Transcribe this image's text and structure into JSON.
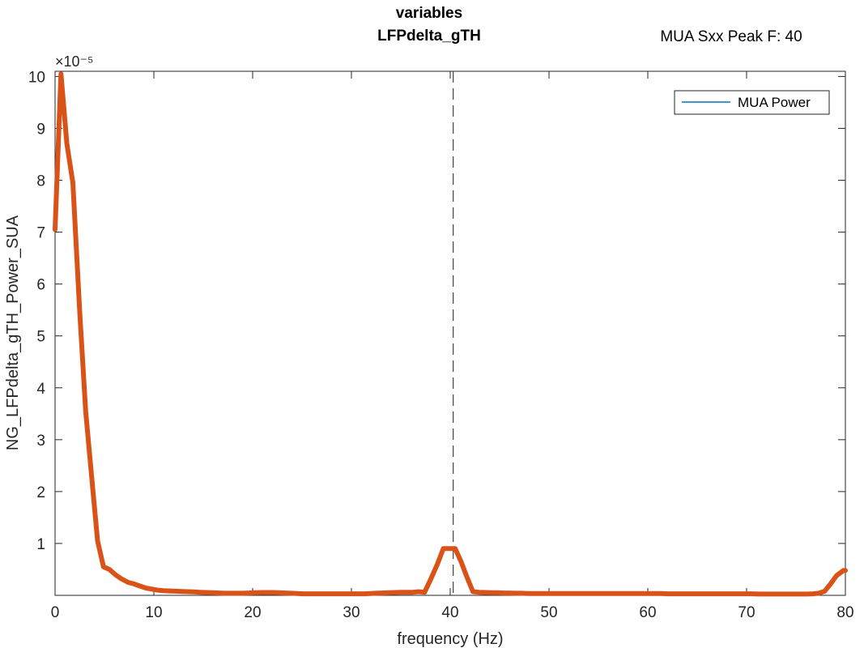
{
  "title_line1": "variables",
  "title_line2": "LFPdelta_gTH",
  "annotation": "MUA Sxx Peak F: 40",
  "exponent_label": "×10⁻⁵",
  "colors": {
    "line": "#D95319",
    "legend_line": "#0072BD",
    "axes": "#262626",
    "dashed": "#4d4d4d"
  },
  "chart_data": {
    "type": "line",
    "xlabel": "frequency (Hz)",
    "ylabel": "NG_LFPdelta_gTH_Power_SUA",
    "xlim": [
      0,
      80
    ],
    "ylim": [
      0.0,
      10.1
    ],
    "y_scale_exponent": -5,
    "xticks": [
      0,
      10,
      20,
      30,
      40,
      50,
      60,
      70,
      80
    ],
    "yticks": [
      1,
      2,
      3,
      4,
      5,
      6,
      7,
      8,
      9,
      10
    ],
    "grid": false,
    "legend": {
      "position": "top-right",
      "entries": [
        "MUA Power"
      ]
    },
    "vline_x": 40.3,
    "series": [
      {
        "name": "MUA Power",
        "x": [
          0,
          0.6,
          1.2,
          1.8,
          2.5,
          3.1,
          3.7,
          4.3,
          4.9,
          5.5,
          6.1,
          6.7,
          7.4,
          8.0,
          8.6,
          9.2,
          9.8,
          10.4,
          11.0,
          11.7,
          12.3,
          12.9,
          13.5,
          14.1,
          14.7,
          15.3,
          16.0,
          16.6,
          17.2,
          17.8,
          18.4,
          19.0,
          19.6,
          20.2,
          20.9,
          21.5,
          22.1,
          22.7,
          23.3,
          23.9,
          24.5,
          25.2,
          25.8,
          26.4,
          27.0,
          27.6,
          28.2,
          28.8,
          29.5,
          30.1,
          30.7,
          31.3,
          31.9,
          32.5,
          33.1,
          33.7,
          34.4,
          35.0,
          35.6,
          36.2,
          36.8,
          37.4,
          38.0,
          38.7,
          39.3,
          39.9,
          40.5,
          41.1,
          41.7,
          42.3,
          42.9,
          43.6,
          44.2,
          44.8,
          45.4,
          46.0,
          46.6,
          47.2,
          47.9,
          48.5,
          49.1,
          49.7,
          50.3,
          50.9,
          51.5,
          52.1,
          52.8,
          53.4,
          54.0,
          54.6,
          55.2,
          55.8,
          56.4,
          57.1,
          57.7,
          58.3,
          58.9,
          59.5,
          60.1,
          60.7,
          61.4,
          62.0,
          62.6,
          63.2,
          63.8,
          64.4,
          65.0,
          65.6,
          66.3,
          66.9,
          67.5,
          68.1,
          68.7,
          69.3,
          69.9,
          70.6,
          71.2,
          71.8,
          72.4,
          73.0,
          73.6,
          74.2,
          74.8,
          75.5,
          76.1,
          76.7,
          77.3,
          77.9,
          78.5,
          79.1,
          79.8,
          80.0
        ],
        "values": [
          7.05,
          10.05,
          8.7,
          7.95,
          5.45,
          3.55,
          2.3,
          1.05,
          0.55,
          0.5,
          0.4,
          0.32,
          0.25,
          0.22,
          0.18,
          0.14,
          0.12,
          0.1,
          0.09,
          0.085,
          0.08,
          0.075,
          0.07,
          0.065,
          0.06,
          0.055,
          0.05,
          0.045,
          0.04,
          0.04,
          0.04,
          0.04,
          0.045,
          0.05,
          0.055,
          0.055,
          0.055,
          0.05,
          0.045,
          0.04,
          0.035,
          0.03,
          0.03,
          0.03,
          0.03,
          0.03,
          0.03,
          0.03,
          0.03,
          0.03,
          0.03,
          0.03,
          0.035,
          0.04,
          0.045,
          0.05,
          0.055,
          0.06,
          0.06,
          0.06,
          0.07,
          0.06,
          0.3,
          0.6,
          0.9,
          0.9,
          0.9,
          0.65,
          0.35,
          0.07,
          0.06,
          0.055,
          0.05,
          0.05,
          0.045,
          0.045,
          0.04,
          0.04,
          0.035,
          0.035,
          0.035,
          0.035,
          0.035,
          0.035,
          0.035,
          0.035,
          0.035,
          0.035,
          0.035,
          0.035,
          0.035,
          0.035,
          0.035,
          0.035,
          0.035,
          0.035,
          0.035,
          0.035,
          0.035,
          0.035,
          0.035,
          0.03,
          0.03,
          0.03,
          0.03,
          0.03,
          0.03,
          0.03,
          0.03,
          0.03,
          0.03,
          0.03,
          0.03,
          0.03,
          0.03,
          0.03,
          0.025,
          0.025,
          0.025,
          0.025,
          0.025,
          0.025,
          0.025,
          0.025,
          0.025,
          0.03,
          0.04,
          0.08,
          0.22,
          0.38,
          0.48,
          0.48
        ]
      }
    ]
  }
}
